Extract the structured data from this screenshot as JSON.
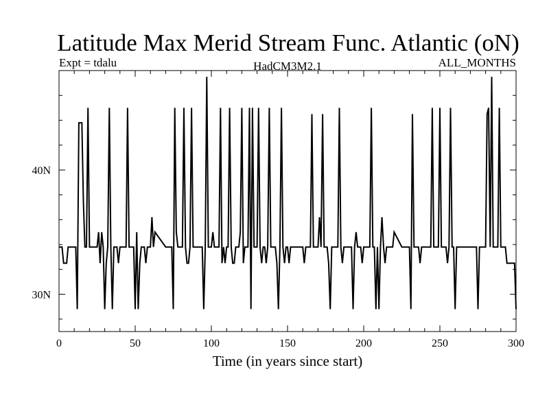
{
  "chart_data": {
    "type": "line",
    "title": "Latitude Max Merid Stream Func. Atlantic (oN)",
    "subtitle_left": "Expt = tdalu",
    "subtitle_center": "HadCM3M2.1",
    "subtitle_right": "ALL_MONTHS",
    "xlabel": "Time (in years since start)",
    "ylabel": "",
    "xlim": [
      0,
      300
    ],
    "ylim": [
      27,
      48
    ],
    "x_ticks": [
      0,
      50,
      100,
      150,
      200,
      250,
      300
    ],
    "y_ticks": [
      {
        "value": 30,
        "label": "30N"
      },
      {
        "value": 40,
        "label": "40N"
      }
    ],
    "grid": false,
    "colors": {
      "line": "#000000",
      "axis": "#000000",
      "background": "#ffffff"
    },
    "series": [
      {
        "x": [
          0,
          2,
          3,
          5,
          6,
          9,
          11,
          12,
          13,
          14,
          15,
          16,
          17,
          18,
          19,
          20,
          21,
          22,
          25,
          26,
          27,
          28,
          29,
          30,
          31,
          32,
          33,
          34,
          35,
          36,
          37,
          38,
          39,
          40,
          41,
          42,
          43,
          44,
          45,
          46,
          47,
          48,
          49,
          50,
          51,
          52,
          53,
          54,
          55,
          56,
          57,
          58,
          59,
          60,
          61,
          62,
          63,
          70,
          74,
          75,
          76,
          77,
          78,
          79,
          80,
          81,
          82,
          83,
          84,
          85,
          86,
          87,
          88,
          89,
          90,
          91,
          92,
          93,
          94,
          95,
          96,
          97,
          98,
          99,
          100,
          101,
          102,
          103,
          104,
          105,
          106,
          107,
          108,
          109,
          110,
          111,
          112,
          113,
          114,
          115,
          116,
          117,
          118,
          119,
          120,
          121,
          122,
          123,
          124,
          125,
          126,
          127,
          128,
          129,
          130,
          131,
          132,
          133,
          134,
          135,
          136,
          137,
          138,
          139,
          140,
          141,
          142,
          143,
          144,
          145,
          146,
          147,
          148,
          149,
          150,
          151,
          152,
          153,
          154,
          155,
          156,
          157,
          158,
          159,
          160,
          161,
          162,
          163,
          164,
          165,
          166,
          167,
          168,
          169,
          170,
          171,
          172,
          173,
          174,
          175,
          176,
          177,
          178,
          179,
          180,
          181,
          182,
          183,
          184,
          185,
          186,
          187,
          188,
          189,
          190,
          191,
          192,
          193,
          194,
          195,
          196,
          197,
          198,
          199,
          200,
          201,
          202,
          203,
          204,
          205,
          206,
          207,
          208,
          209,
          210,
          211,
          212,
          213,
          214,
          215,
          216,
          217,
          218,
          219,
          220,
          225,
          226,
          227,
          228,
          229,
          230,
          231,
          232,
          233,
          234,
          235,
          236,
          237,
          238,
          239,
          240,
          241,
          242,
          243,
          244,
          245,
          246,
          247,
          248,
          249,
          250,
          251,
          252,
          253,
          254,
          255,
          256,
          257,
          258,
          259,
          260,
          261,
          262,
          263,
          264,
          265,
          266,
          267,
          268,
          269,
          270,
          271,
          272,
          273,
          274,
          275,
          276,
          277,
          278,
          279,
          280,
          281,
          282,
          283,
          284,
          285,
          286,
          287,
          288,
          289,
          290,
          291,
          292,
          293,
          294,
          295,
          296,
          297,
          298,
          299,
          300
        ],
        "y": [
          33.8,
          33.8,
          32.5,
          32.5,
          33.8,
          33.8,
          33.8,
          28.8,
          43.8,
          43.8,
          43.8,
          37.5,
          33.8,
          33.8,
          45,
          33.8,
          33.8,
          33.8,
          33.8,
          35,
          32.5,
          35,
          33.8,
          28.8,
          32.5,
          33.8,
          45,
          33.8,
          28.8,
          33.8,
          33.8,
          33.8,
          32.5,
          33.8,
          33.8,
          33.8,
          33.8,
          33.8,
          45,
          33.8,
          33.8,
          33.8,
          33.8,
          28.8,
          35,
          28.8,
          32.5,
          33.8,
          33.8,
          33.8,
          32.5,
          33.8,
          33.8,
          33.8,
          36.2,
          33.8,
          35,
          33.8,
          33.8,
          28.8,
          45,
          35,
          33.8,
          33.8,
          33.8,
          33.8,
          45,
          33.8,
          32.5,
          32.5,
          33.8,
          45,
          33.8,
          33.8,
          33.8,
          33.8,
          33.8,
          33.8,
          33.8,
          28.8,
          33.8,
          47.5,
          33.8,
          33.8,
          33.8,
          35,
          33.8,
          33.8,
          33.8,
          33.8,
          45,
          32.5,
          33.8,
          32.5,
          33.8,
          33.8,
          45,
          33.8,
          32.5,
          32.5,
          33.8,
          33.8,
          33.8,
          35,
          45,
          32.5,
          33.8,
          33.8,
          33.8,
          45,
          28.8,
          45,
          33.8,
          33.8,
          33.8,
          45,
          33.8,
          32.5,
          33.8,
          33.8,
          32.5,
          33.8,
          45,
          33.8,
          33.8,
          33.8,
          33.8,
          32.5,
          28.8,
          33.8,
          45,
          33.8,
          32.5,
          33.8,
          33.8,
          32.5,
          33.8,
          33.8,
          33.8,
          33.8,
          33.8,
          33.8,
          33.8,
          33.8,
          33.8,
          32.5,
          33.8,
          33.8,
          33.8,
          33.8,
          44.5,
          33.8,
          33.8,
          33.8,
          33.8,
          36.2,
          33.8,
          44.5,
          33.8,
          33.8,
          33.8,
          32.5,
          28.8,
          33.8,
          33.8,
          33.8,
          33.8,
          33.8,
          45,
          33.8,
          32.5,
          33.8,
          33.8,
          33.8,
          33.8,
          33.8,
          33.8,
          28.8,
          33.8,
          35,
          33.8,
          33.8,
          33.8,
          32.5,
          33.8,
          33.8,
          33.8,
          33.8,
          33.8,
          45,
          33.8,
          33.8,
          28.8,
          33.8,
          28.8,
          33.8,
          36.2,
          33.8,
          32.5,
          33.8,
          33.8,
          33.8,
          33.8,
          33.8,
          35,
          33.8,
          33.8,
          33.8,
          33.8,
          33.8,
          33.8,
          28.8,
          44.5,
          33.8,
          33.8,
          33.8,
          33.8,
          32.5,
          33.8,
          33.8,
          33.8,
          33.8,
          33.8,
          33.8,
          33.8,
          45,
          33.8,
          33.8,
          33.8,
          33.8,
          45,
          33.8,
          33.8,
          33.8,
          33.8,
          32.5,
          33.8,
          45,
          33.8,
          33.8,
          28.8,
          33.8,
          33.8,
          33.8,
          33.8,
          33.8,
          33.8,
          33.8,
          33.8,
          33.8,
          33.8,
          33.8,
          33.8,
          33.8,
          33.8,
          28.8,
          33.8,
          33.8,
          33.8,
          33.8,
          33.8,
          44.5,
          45,
          33.8,
          47.5,
          33.8,
          33.8,
          33.8,
          33.8,
          45,
          33.8,
          33.8,
          33.8,
          33.8,
          32.5,
          32.5,
          32.5,
          32.5,
          32.5,
          32.5,
          28.8
        ]
      }
    ]
  }
}
